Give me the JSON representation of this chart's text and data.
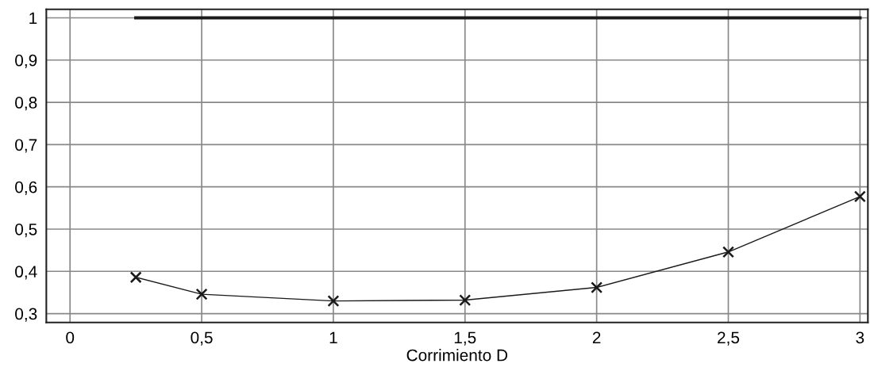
{
  "chart_data": {
    "type": "line",
    "xlabel": "Corrimiento D",
    "xlim": [
      -0.09,
      3.03
    ],
    "ylim": [
      0.279,
      1.02
    ],
    "xticks": [
      {
        "value": 0,
        "label": "0"
      },
      {
        "value": 0.5,
        "label": "0,5"
      },
      {
        "value": 1,
        "label": "1"
      },
      {
        "value": 1.5,
        "label": "1,5"
      },
      {
        "value": 2,
        "label": "2"
      },
      {
        "value": 2.5,
        "label": "2,5"
      },
      {
        "value": 3,
        "label": "3"
      }
    ],
    "yticks": [
      {
        "value": 0.3,
        "label": "0,3"
      },
      {
        "value": 0.4,
        "label": "0,4"
      },
      {
        "value": 0.5,
        "label": "0,5"
      },
      {
        "value": 0.6,
        "label": "0,6"
      },
      {
        "value": 0.7,
        "label": "0,7"
      },
      {
        "value": 0.8,
        "label": "0,8"
      },
      {
        "value": 0.9,
        "label": "0,9"
      },
      {
        "value": 1,
        "label": "1"
      }
    ],
    "grid": true,
    "series": [
      {
        "color": "#1a1a1a",
        "x": [
          0.25,
          0.5,
          1,
          1.5,
          2,
          2.5,
          3
        ],
        "values": [
          0.386,
          0.346,
          0.33,
          0.332,
          0.362,
          0.446,
          0.577
        ],
        "marker": "cross",
        "line_style": "solid"
      },
      {
        "color": "#1a1a1a",
        "x": [
          0.25,
          3
        ],
        "values": [
          1,
          1
        ],
        "marker": "none",
        "line_style": "solid"
      }
    ]
  }
}
